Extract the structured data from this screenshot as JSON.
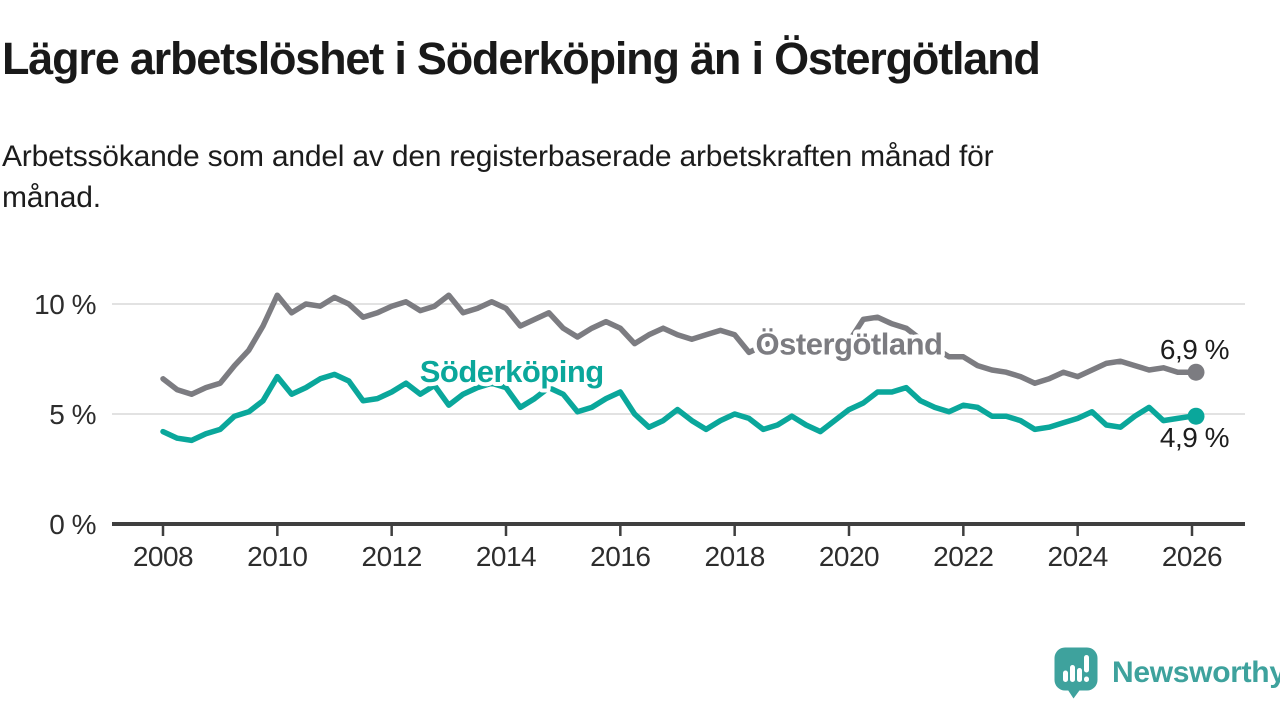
{
  "header": {
    "title": "Lägre arbetslöshet i Söderköping än i Östergötland",
    "subtitle": "Arbetssökande som andel av den registerbaserade arbetskraften månad för månad."
  },
  "chart_data": {
    "type": "line",
    "title": "Lägre arbetslöshet i Söderköping än i Östergötland",
    "xlabel": "",
    "ylabel": "",
    "x_unit": "decimal year (quarterly samples)",
    "xlim": [
      2007.1,
      2026.93
    ],
    "ylim": [
      0,
      10.8
    ],
    "grid": "horizontal",
    "grid_color": "#d9d9d9",
    "axis_color": "#3f3f3f",
    "tick_text_color": "#2d2d2d",
    "x": [
      2008,
      2008.25,
      2008.5,
      2008.75,
      2009,
      2009.25,
      2009.5,
      2009.75,
      2010,
      2010.25,
      2010.5,
      2010.75,
      2011,
      2011.25,
      2011.5,
      2011.75,
      2012,
      2012.25,
      2012.5,
      2012.75,
      2013,
      2013.25,
      2013.5,
      2013.75,
      2014,
      2014.25,
      2014.5,
      2014.75,
      2015,
      2015.25,
      2015.5,
      2015.75,
      2016,
      2016.25,
      2016.5,
      2016.75,
      2017,
      2017.25,
      2017.5,
      2017.75,
      2018,
      2018.25,
      2018.5,
      2018.75,
      2019,
      2019.25,
      2019.5,
      2019.75,
      2020,
      2020.25,
      2020.5,
      2020.75,
      2021,
      2021.25,
      2021.5,
      2021.75,
      2022,
      2022.25,
      2022.5,
      2022.75,
      2023,
      2023.25,
      2023.5,
      2023.75,
      2024,
      2024.25,
      2024.5,
      2024.75,
      2025,
      2025.25,
      2025.5,
      2025.75,
      2026
    ],
    "series": [
      {
        "name": "Östergötland",
        "color": "#7c7c81",
        "end_value_label": "6,9 %",
        "end_label_position": "above",
        "label_anchor": {
          "x": 2020.0,
          "y": 8.2
        },
        "values": [
          6.6,
          6.1,
          5.9,
          6.2,
          6.4,
          7.2,
          7.9,
          9.0,
          10.4,
          9.6,
          10.0,
          9.9,
          10.3,
          10.0,
          9.4,
          9.6,
          9.9,
          10.1,
          9.7,
          9.9,
          10.4,
          9.6,
          9.8,
          10.1,
          9.8,
          9.0,
          9.3,
          9.6,
          8.9,
          8.5,
          8.9,
          9.2,
          8.9,
          8.2,
          8.6,
          8.9,
          8.6,
          8.4,
          8.6,
          8.8,
          8.6,
          7.8,
          8.1,
          8.4,
          8.2,
          7.8,
          8.0,
          8.2,
          8.3,
          9.3,
          9.4,
          9.1,
          8.9,
          8.4,
          8.0,
          7.6,
          7.6,
          7.2,
          7.0,
          6.9,
          6.7,
          6.4,
          6.6,
          6.9,
          6.7,
          7.0,
          7.3,
          7.4,
          7.2,
          7.0,
          7.1,
          6.9,
          6.9
        ]
      },
      {
        "name": "Söderköping",
        "color": "#0aa79b",
        "end_value_label": "4,9 %",
        "end_label_position": "below",
        "label_anchor": {
          "x": 2014.1,
          "y": 6.95
        },
        "values": [
          4.2,
          3.9,
          3.8,
          4.1,
          4.3,
          4.9,
          5.1,
          5.6,
          6.7,
          5.9,
          6.2,
          6.6,
          6.8,
          6.5,
          5.6,
          5.7,
          6.0,
          6.4,
          5.9,
          6.3,
          5.4,
          5.9,
          6.2,
          6.4,
          6.2,
          5.3,
          5.7,
          6.2,
          5.9,
          5.1,
          5.3,
          5.7,
          6.0,
          5.0,
          4.4,
          4.7,
          5.2,
          4.7,
          4.3,
          4.7,
          5.0,
          4.8,
          4.3,
          4.5,
          4.9,
          4.5,
          4.2,
          4.7,
          5.2,
          5.5,
          6.0,
          6.0,
          6.2,
          5.6,
          5.3,
          5.1,
          5.4,
          5.3,
          4.9,
          4.9,
          4.7,
          4.3,
          4.4,
          4.6,
          4.8,
          5.1,
          4.5,
          4.4,
          4.9,
          5.3,
          4.7,
          4.8,
          4.9
        ]
      }
    ],
    "yticks": [
      {
        "value": 10,
        "label": "10 %"
      },
      {
        "value": 5,
        "label": "5 %"
      },
      {
        "value": 0,
        "label": "0 %"
      }
    ],
    "xticks": [
      {
        "value": 2008,
        "label": "2008"
      },
      {
        "value": 2010,
        "label": "2010"
      },
      {
        "value": 2012,
        "label": "2012"
      },
      {
        "value": 2014,
        "label": "2014"
      },
      {
        "value": 2016,
        "label": "2016"
      },
      {
        "value": 2018,
        "label": "2018"
      },
      {
        "value": 2020,
        "label": "2020"
      },
      {
        "value": 2022,
        "label": "2022"
      },
      {
        "value": 2024,
        "label": "2024"
      },
      {
        "value": 2026,
        "label": "2026"
      }
    ],
    "legend_position": "inline-labels"
  },
  "branding": {
    "logo_text": "Newsworthy",
    "brand_color": "#3ea29d"
  }
}
